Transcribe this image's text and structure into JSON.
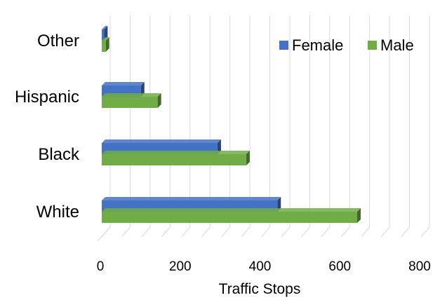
{
  "chart_data": {
    "type": "bar",
    "orientation": "horizontal",
    "style": "3d-clustered",
    "categories": [
      "Other",
      "Hispanic",
      "Black",
      "White"
    ],
    "series": [
      {
        "name": "Female",
        "color": "#4472C4",
        "values": [
          6,
          98,
          290,
          440
        ]
      },
      {
        "name": "Male",
        "color": "#70AD47",
        "values": [
          10,
          140,
          362,
          640
        ]
      }
    ],
    "xlabel": "Traffic Stops",
    "ylabel": "",
    "xlim": [
      0,
      800
    ],
    "xticks": [
      0,
      200,
      400,
      600,
      800
    ],
    "xtick_labels": [
      "0",
      "200",
      "400",
      "600",
      "800"
    ],
    "grid": true,
    "legend": "top-right"
  }
}
